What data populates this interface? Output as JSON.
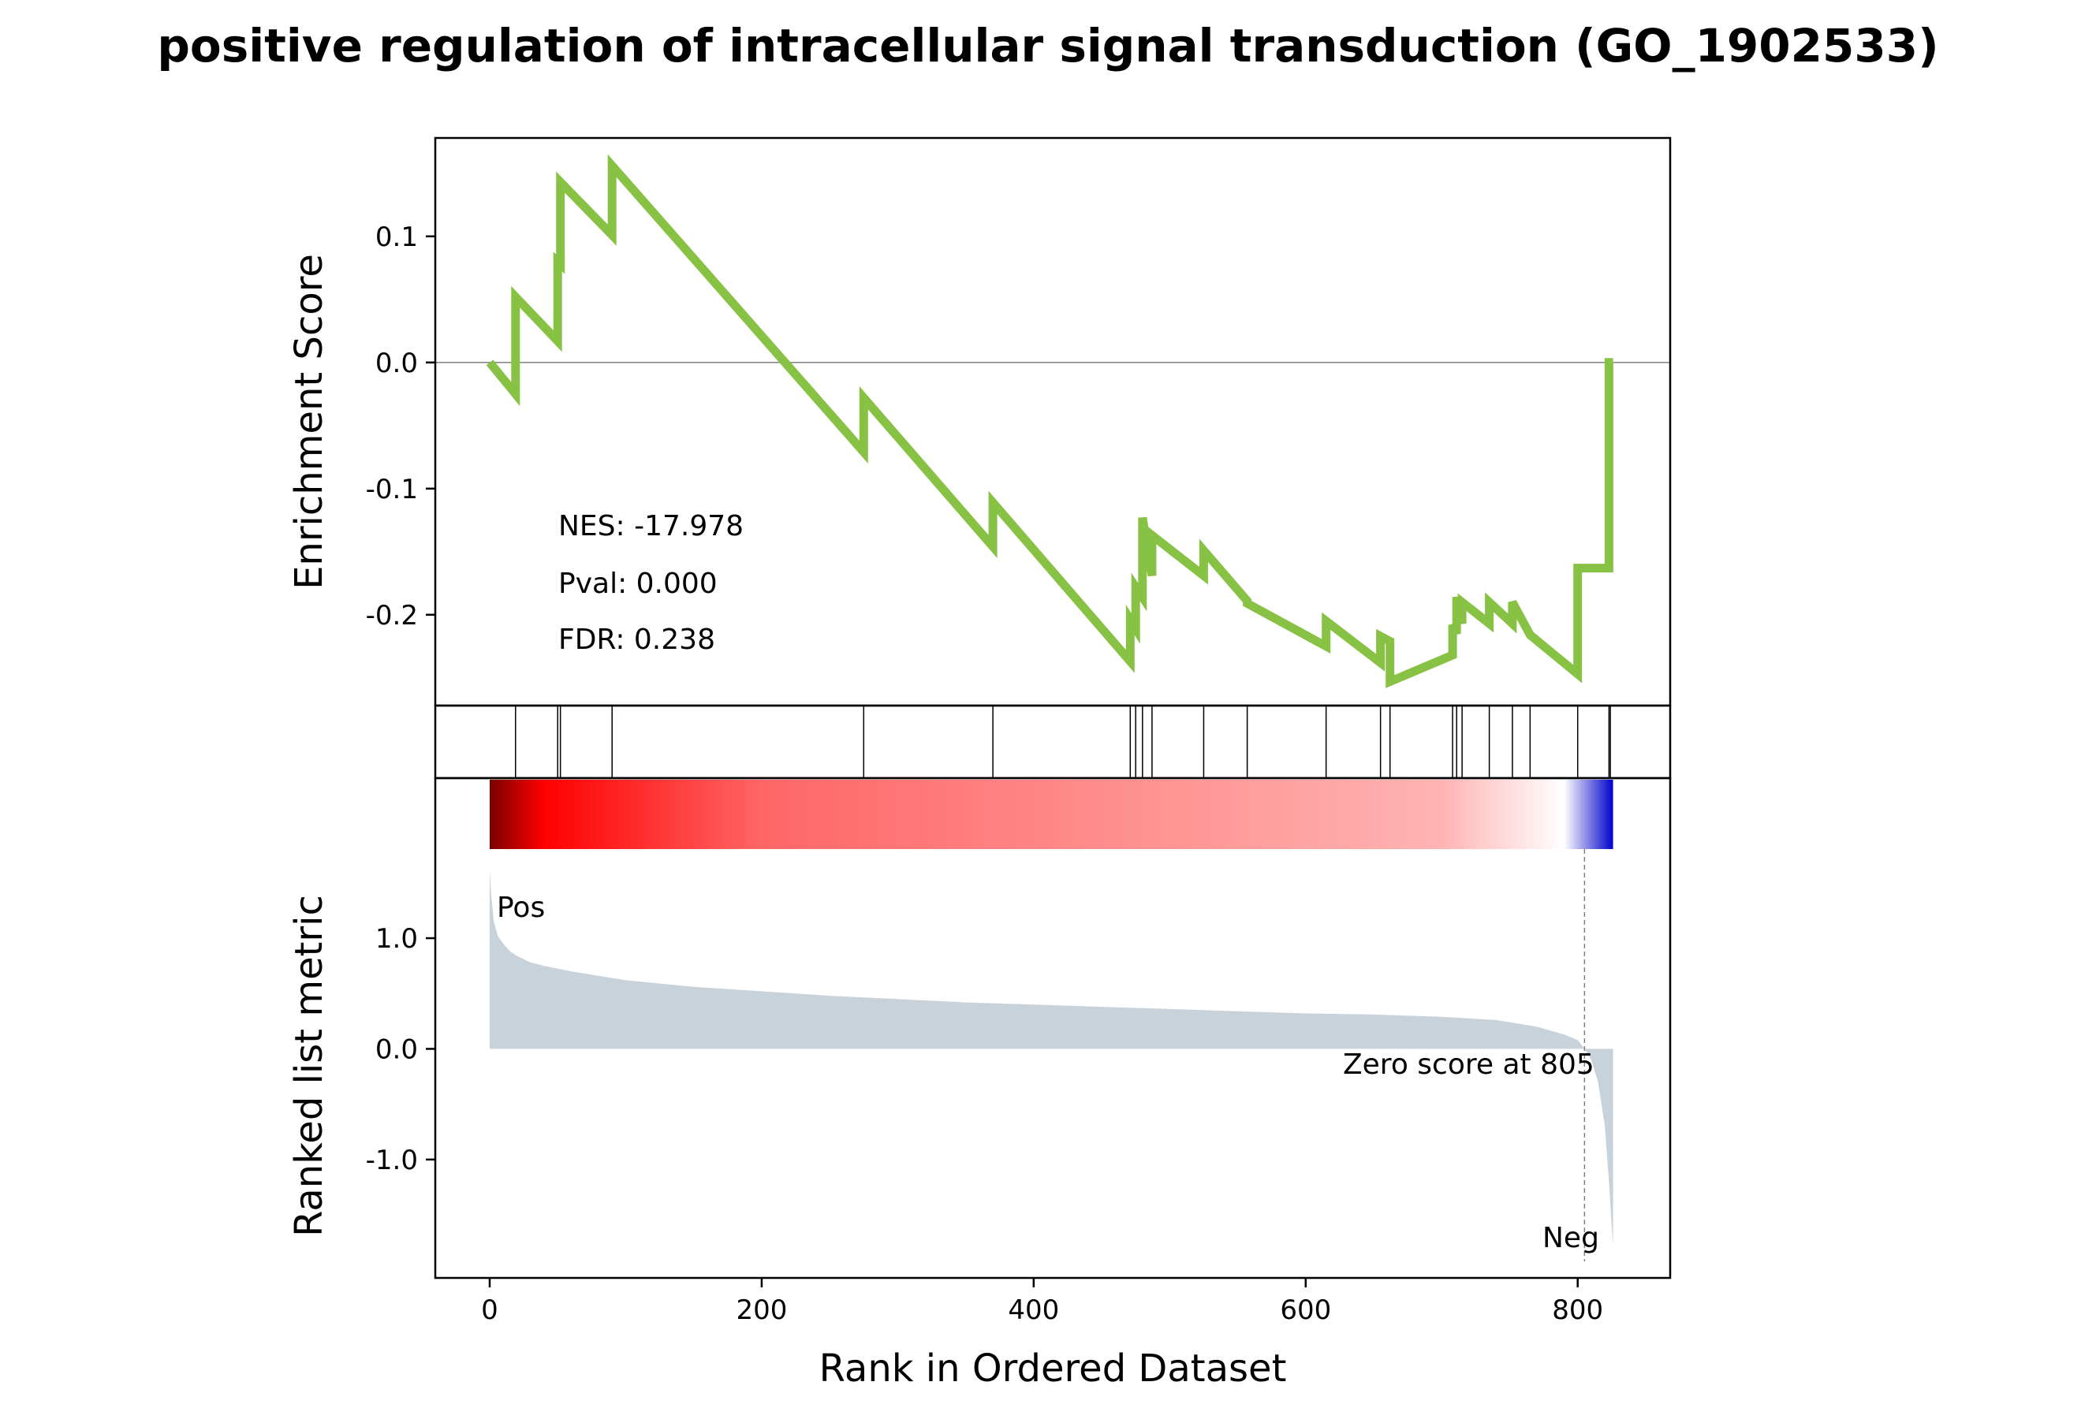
{
  "chart_data": {
    "type": "line",
    "title": "positive regulation of intracellular signal transduction (GO_1902533)",
    "xlabel": "Rank in Ordered Dataset",
    "ylabel_top": "Enrichment Score",
    "ylabel_bottom": "Ranked list metric",
    "xlim": [
      -40,
      868
    ],
    "x_ticks": [
      0,
      200,
      400,
      600,
      800
    ],
    "x_tick_labels": [
      "0",
      "200",
      "400",
      "600",
      "800"
    ],
    "top": {
      "ylim": [
        -0.272,
        0.178
      ],
      "y_ticks": [
        0.1,
        0.0,
        -0.1,
        -0.2
      ],
      "y_tick_labels": [
        "0.1",
        "0.0",
        "-0.1",
        "-0.2"
      ],
      "zero_line": 0.0,
      "line_color": "#88c244",
      "stats": {
        "nes": "NES: -17.978",
        "pval": "Pval: 0.000",
        "fdr": "FDR: 0.238"
      },
      "series": [
        {
          "x": [
            0,
            19,
            19,
            50,
            50,
            52,
            52,
            90,
            90,
            275,
            275,
            370,
            370,
            471,
            471,
            475,
            475,
            480,
            480,
            487,
            487,
            525,
            525,
            557,
            557,
            615,
            615,
            655,
            655,
            662,
            662,
            708,
            708,
            711,
            711,
            715,
            715,
            735,
            735,
            752,
            752,
            765,
            765,
            800,
            800,
            823,
            823,
            824,
            824,
            826
          ],
          "y": [
            0.0,
            -0.025,
            0.052,
            0.017,
            0.08,
            0.078,
            0.143,
            0.101,
            0.156,
            -0.071,
            -0.028,
            -0.146,
            -0.111,
            -0.237,
            -0.204,
            -0.211,
            -0.178,
            -0.186,
            -0.123,
            -0.169,
            -0.137,
            -0.169,
            -0.149,
            -0.189,
            -0.191,
            -0.225,
            -0.205,
            -0.238,
            -0.217,
            -0.221,
            -0.253,
            -0.232,
            -0.208,
            -0.215,
            -0.186,
            -0.207,
            -0.19,
            -0.207,
            -0.19,
            -0.207,
            -0.19,
            -0.216,
            -0.216,
            -0.247,
            -0.163,
            -0.163,
            0.0,
            0.0,
            0.0,
            0.0
          ]
        }
      ]
    },
    "hits": [
      19,
      50,
      52,
      90,
      275,
      370,
      471,
      475,
      480,
      487,
      525,
      557,
      615,
      655,
      662,
      708,
      711,
      715,
      735,
      752,
      765,
      800,
      823,
      824
    ],
    "heatmap": {
      "colors": [
        "#7a0000",
        "#ff0000",
        "#ff6666",
        "#ffb3b3",
        "#ffffff",
        "#0000cc"
      ],
      "stops": [
        0,
        40,
        200,
        700,
        790,
        826
      ]
    },
    "bottom": {
      "ylim": [
        -1.92,
        1.62
      ],
      "y_ticks": [
        1.0,
        0.0,
        -1.0
      ],
      "y_tick_labels": [
        "1.0",
        "0.0",
        "-1.0"
      ],
      "fill_color": "#c8d2db",
      "pos_label": "Pos",
      "neg_label": "Neg",
      "pos_color": "#ff0000",
      "neg_color": "#0000cc",
      "zero_cross": 805,
      "zero_label": "Zero score at 805",
      "metric": {
        "x": [
          0,
          1,
          3,
          6,
          10,
          15,
          20,
          30,
          40,
          60,
          80,
          100,
          150,
          200,
          250,
          300,
          350,
          400,
          450,
          500,
          550,
          600,
          650,
          700,
          740,
          770,
          790,
          800,
          805,
          810,
          815,
          820,
          823,
          825,
          826
        ],
        "y": [
          1.62,
          1.4,
          1.15,
          1.02,
          0.95,
          0.88,
          0.84,
          0.78,
          0.75,
          0.7,
          0.66,
          0.62,
          0.56,
          0.52,
          0.48,
          0.45,
          0.42,
          0.4,
          0.38,
          0.36,
          0.34,
          0.32,
          0.31,
          0.29,
          0.26,
          0.2,
          0.13,
          0.08,
          0.0,
          -0.1,
          -0.3,
          -0.7,
          -1.2,
          -1.6,
          -1.78
        ]
      }
    }
  }
}
